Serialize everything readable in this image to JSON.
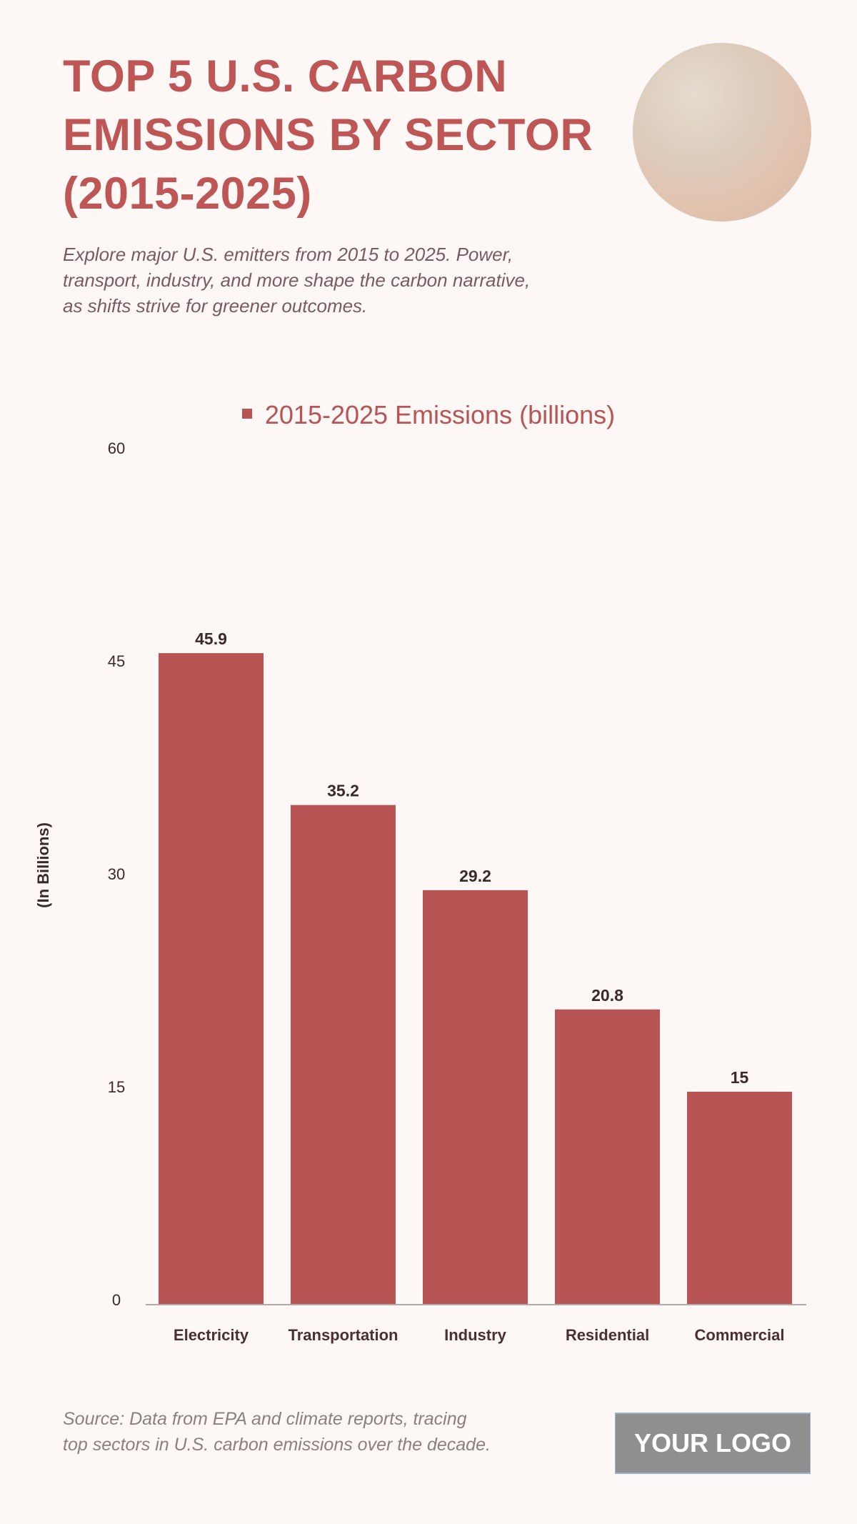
{
  "title": [
    "TOP 5 U.S. CARBON",
    "EMISSIONS BY SECTOR",
    "(2015-2025)"
  ],
  "subtitle": [
    "Explore major U.S. emitters from 2015 to 2025. Power,",
    "transport, industry, and more shape the carbon narrative,",
    "as shifts strive for greener outcomes."
  ],
  "source": [
    "Source: Data from EPA and climate reports, tracing",
    "top sectors in U.S. carbon emissions over the decade."
  ],
  "logo": "YOUR LOGO",
  "colors": {
    "accent": "#bf5656",
    "bar": "#b85454",
    "background": "#fdf8f6"
  },
  "chart_data": {
    "type": "bar",
    "categories": [
      "Electricity",
      "Transportation",
      "Industry",
      "Residential",
      "Commercial"
    ],
    "series": [
      {
        "name": "2015-2025 Emissions (billions)",
        "values": [
          45.9,
          35.2,
          29.2,
          20.8,
          15
        ]
      }
    ],
    "data_labels": [
      "45.9",
      "35.2",
      "29.2",
      "20.8",
      "15"
    ],
    "ylabel": "(In Billions)",
    "xlabel": "",
    "ylim": [
      0,
      60
    ],
    "yticks": [
      "0",
      "15",
      "30",
      "45",
      "60"
    ],
    "grid": false,
    "legend": "top-center"
  }
}
